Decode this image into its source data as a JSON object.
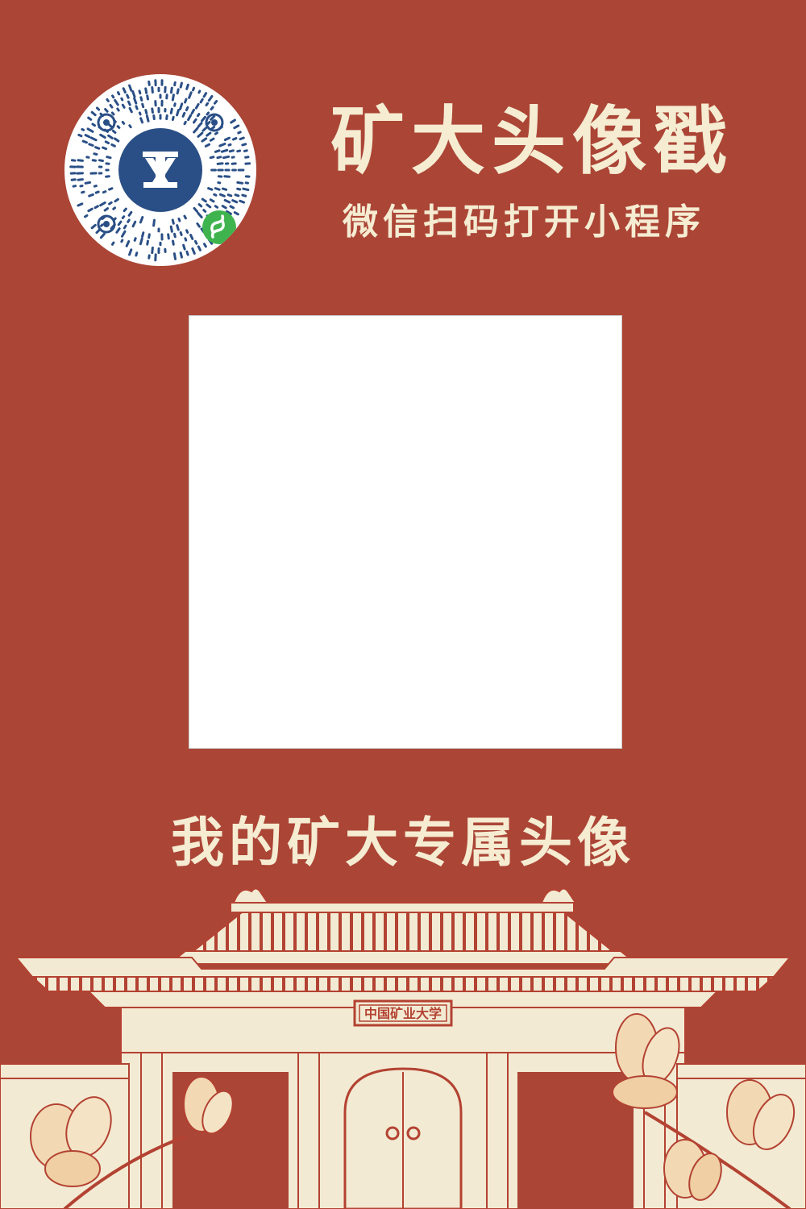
{
  "header": {
    "title": "矿大头像戳",
    "subtitle": "微信扫码打开小程序"
  },
  "qr_code": {
    "icon": "wechat-mini-program-code",
    "center_logo": "university-emblem",
    "badge": "mini-program-link-icon"
  },
  "avatar_slot": {
    "background": "#ffffff"
  },
  "caption": "我的矿大专属头像",
  "gate": {
    "plaque_text": "中国矿业大学"
  },
  "colors": {
    "background": "#ab4536",
    "text": "#f5ecd2",
    "line": "#b34232",
    "qr_blue": "#2a4f86",
    "badge_green": "#3fb44e",
    "magnolia": "#f2d9b4"
  }
}
